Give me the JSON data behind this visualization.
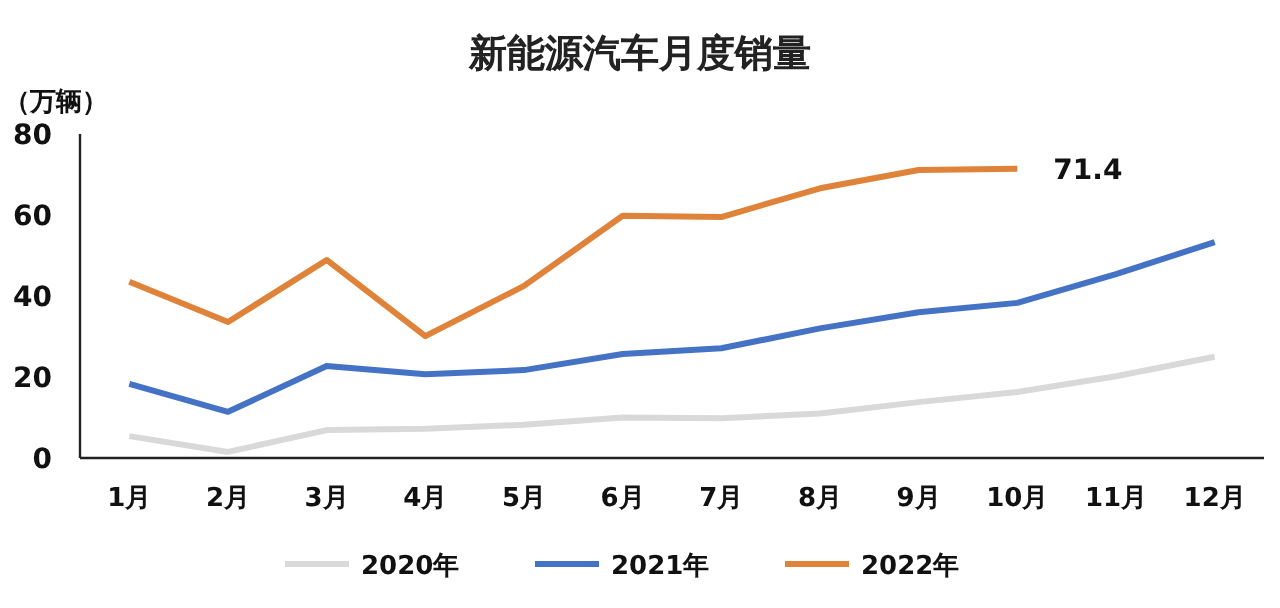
{
  "chart_data": {
    "type": "line",
    "title": "新能源汽车月度销量",
    "ylabel": "（万辆）",
    "categories": [
      "1月",
      "2月",
      "3月",
      "4月",
      "5月",
      "6月",
      "7月",
      "8月",
      "9月",
      "10月",
      "11月",
      "12月"
    ],
    "series": [
      {
        "name": "2020年",
        "color": "#d9d9d9",
        "values": [
          5.4,
          1.5,
          6.9,
          7.2,
          8.2,
          10,
          9.8,
          11,
          13.8,
          16.3,
          20.2,
          25
        ]
      },
      {
        "name": "2021年",
        "color": "#4472c4",
        "values": [
          18.3,
          11.4,
          22.7,
          20.7,
          21.7,
          25.7,
          27.1,
          32,
          36,
          38.3,
          45.4,
          53.3
        ]
      },
      {
        "name": "2022年",
        "color": "#e0833a",
        "values": [
          43.5,
          33.6,
          48.9,
          30.1,
          42.5,
          59.8,
          59.5,
          66.6,
          71.1,
          71.4,
          null,
          null
        ]
      }
    ],
    "ylim": [
      0,
      80
    ],
    "yticks": [
      0,
      20,
      40,
      60,
      80
    ],
    "legend": "bottom",
    "annotations": [
      {
        "text": "71.4",
        "x": "10月",
        "y": 71.4
      }
    ]
  }
}
